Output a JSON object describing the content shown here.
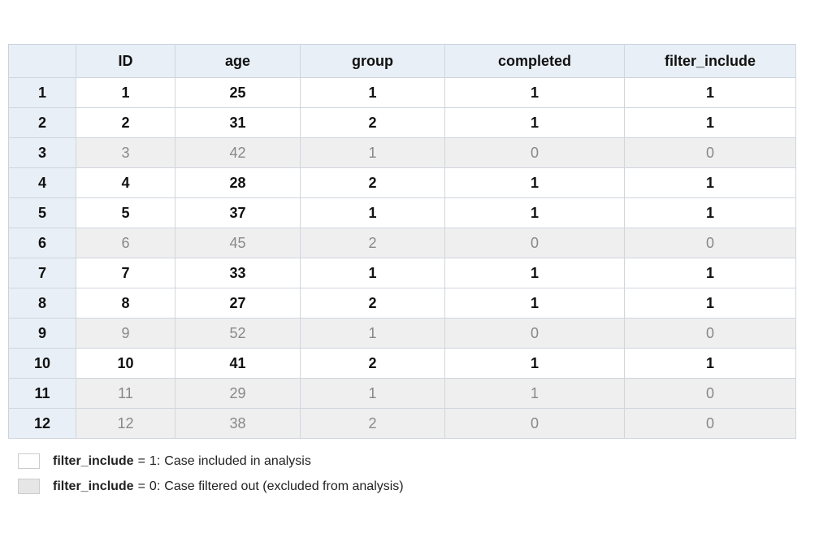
{
  "table": {
    "columns": [
      "ID",
      "age",
      "group",
      "completed",
      "filter_include"
    ],
    "row_labels": [
      1,
      2,
      3,
      4,
      5,
      6,
      7,
      8,
      9,
      10,
      11,
      12
    ],
    "rows": [
      [
        1,
        25,
        1,
        1,
        1
      ],
      [
        2,
        31,
        2,
        1,
        1
      ],
      [
        3,
        42,
        1,
        0,
        0
      ],
      [
        4,
        28,
        2,
        1,
        1
      ],
      [
        5,
        37,
        1,
        1,
        1
      ],
      [
        6,
        45,
        2,
        0,
        0
      ],
      [
        7,
        33,
        1,
        1,
        1
      ],
      [
        8,
        27,
        2,
        1,
        1
      ],
      [
        9,
        52,
        1,
        0,
        0
      ],
      [
        10,
        41,
        2,
        1,
        1
      ],
      [
        11,
        29,
        1,
        1,
        0
      ],
      [
        12,
        38,
        2,
        0,
        0
      ]
    ]
  },
  "legend": [
    {
      "key": "filter_include",
      "operator": "=",
      "value": 1,
      "separator": ":",
      "description": "Case included in analysis"
    },
    {
      "key": "filter_include",
      "operator": "=",
      "value": 0,
      "separator": ":",
      "description": "Case filtered out (excluded from analysis)"
    }
  ]
}
